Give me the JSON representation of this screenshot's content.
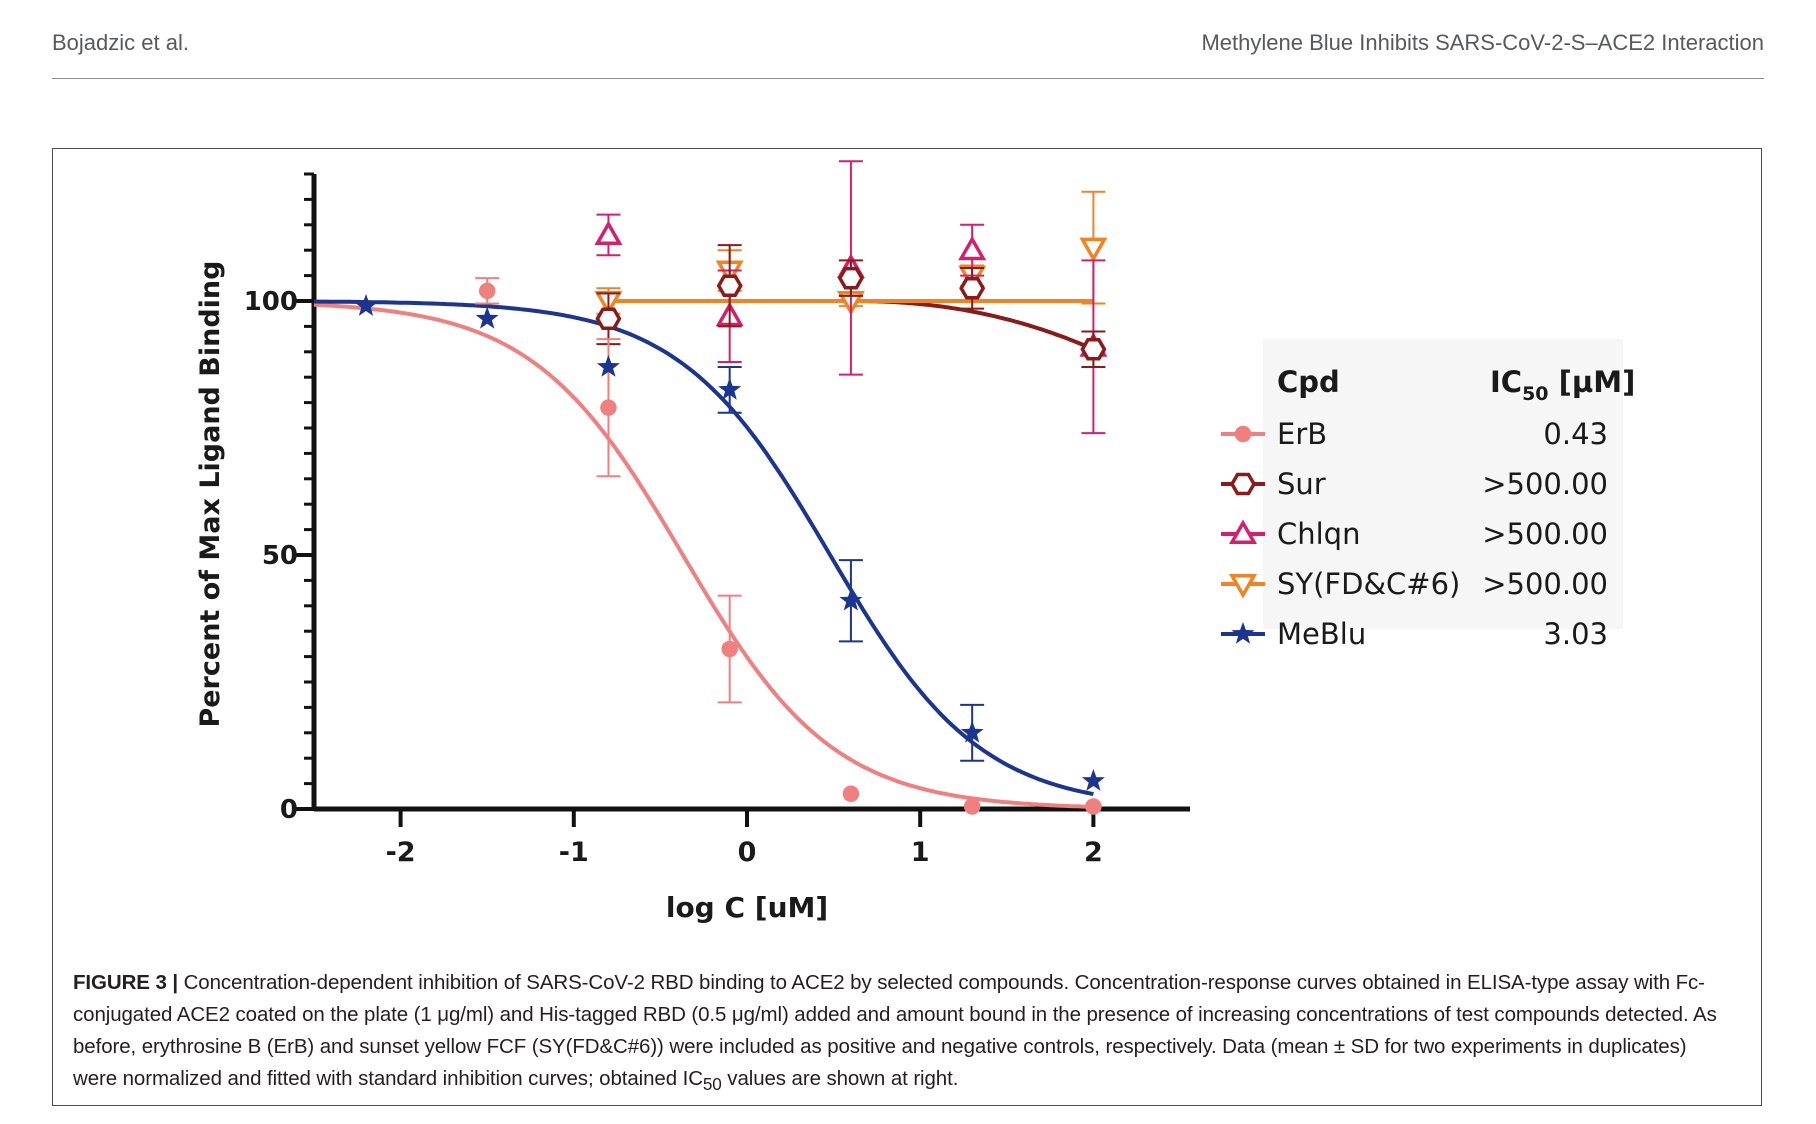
{
  "header": {
    "left": "Bojadzic et al.",
    "right": "Methylene Blue Inhibits SARS-CoV-2-S–ACE2 Interaction"
  },
  "chart_data": {
    "type": "scatter",
    "xlabel": "log C [uM]",
    "ylabel": "Percent of Max Ligand Binding",
    "xlim": [
      -2.5,
      2.5
    ],
    "ylim": [
      0,
      125
    ],
    "xticks": [
      "-2",
      "-1",
      "0",
      "1",
      "2"
    ],
    "yticks": [
      "0",
      "50",
      "100"
    ],
    "legend_placement": "right",
    "legend_header": {
      "cpd": "Cpd",
      "ic50": "IC",
      "ic50_sub": "50",
      "ic50_unit": " [µM]"
    },
    "series": [
      {
        "name": "ErB",
        "ic50": "0.43",
        "color": "#f08080",
        "marker": "circle",
        "log_ic50": -0.37,
        "curve": "sigmoid",
        "x": [
          -1.5,
          -0.8,
          -0.1,
          0.6,
          1.3,
          2.0
        ],
        "y": [
          102,
          79,
          31.5,
          3,
          0.5,
          0.5
        ],
        "err": [
          2.5,
          13.5,
          10.5,
          0,
          0,
          0
        ]
      },
      {
        "name": "Sur",
        "ic50": ">500.00",
        "color": "#8b1a1a",
        "marker": "hexagon",
        "curve": "flat_drop",
        "x": [
          -0.8,
          -0.1,
          0.6,
          1.3,
          2.0
        ],
        "y": [
          96.5,
          103,
          104.5,
          102.5,
          90.5
        ],
        "err": [
          5,
          8,
          3.5,
          4,
          3.5
        ]
      },
      {
        "name": "Chlqn",
        "ic50": ">500.00",
        "color": "#d2206f",
        "marker": "triangle-up",
        "curve": "none",
        "x": [
          -0.8,
          -0.1,
          0.6,
          1.3,
          2.0
        ],
        "y": [
          113,
          97,
          106.5,
          110,
          91
        ],
        "err": [
          4,
          9,
          21,
          5,
          17
        ]
      },
      {
        "name": "SY(FD&C#6)",
        "ic50": ">500.00",
        "color": "#f28322",
        "marker": "triangle-down",
        "curve": "flat",
        "x": [
          -0.8,
          -0.1,
          0.6,
          1.3,
          2.0
        ],
        "y": [
          100,
          106,
          100,
          105,
          110.5
        ],
        "err": [
          2.5,
          4,
          1,
          2,
          11
        ]
      },
      {
        "name": "MeBlu",
        "ic50": "3.03",
        "color": "#1b3591",
        "marker": "star",
        "log_ic50": 0.48,
        "curve": "sigmoid",
        "x": [
          -2.2,
          -1.5,
          -0.8,
          -0.1,
          0.6,
          1.3,
          2.0
        ],
        "y": [
          99,
          96.5,
          87,
          82.5,
          41,
          15,
          5.5
        ],
        "err": [
          0,
          0,
          0,
          4.5,
          8,
          5.5,
          0
        ]
      }
    ]
  },
  "caption": {
    "label": "FIGURE 3 |",
    "text": " Concentration-dependent inhibition of SARS-CoV-2 RBD binding to ACE2 by selected compounds. Concentration-response curves obtained in ELISA-type assay with Fc-conjugated ACE2 coated on the plate (1 μg/ml) and His-tagged RBD (0.5 μg/ml) added and amount bound in the presence of increasing concentrations of test compounds detected. As before, erythrosine B (ErB) and sunset yellow FCF (SY(FD&C#6)) were included as positive and negative controls, respectively. Data (mean ± SD for two experiments in duplicates) were normalized and fitted with standard inhibition curves; obtained IC",
    "sub": "50",
    "tail": " values are shown at right."
  }
}
